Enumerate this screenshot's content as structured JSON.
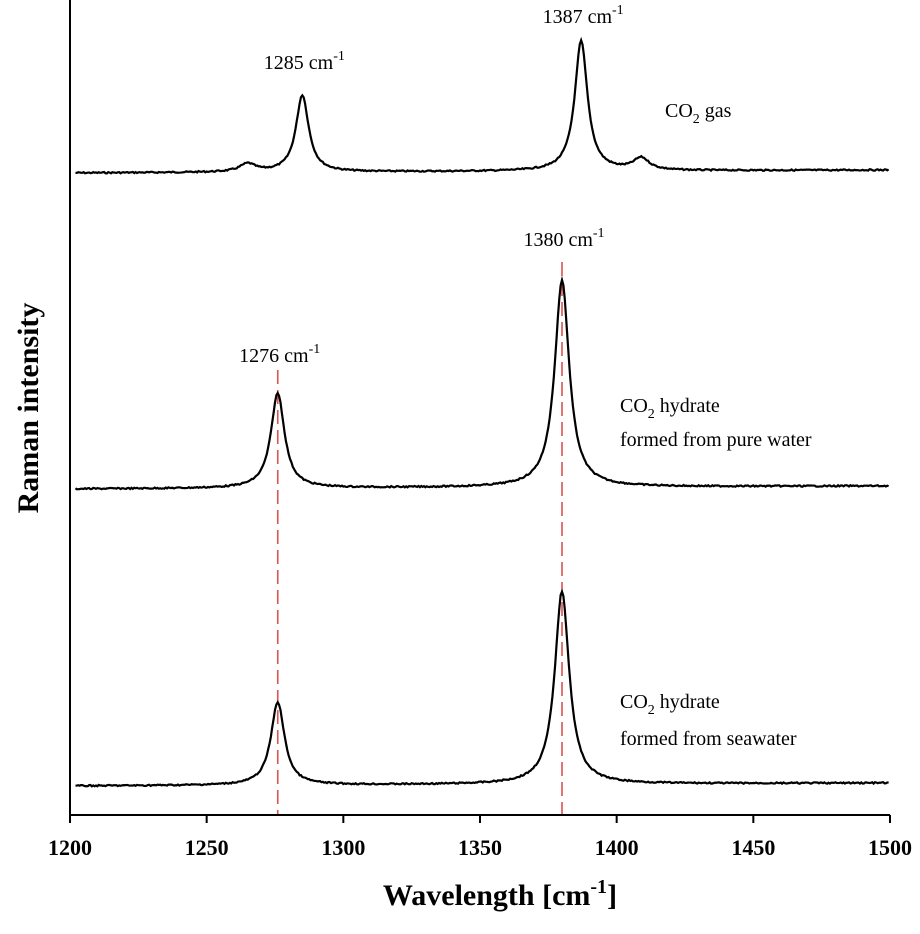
{
  "chart_data": {
    "type": "line",
    "xlabel_main": "Wavelength [cm",
    "xlabel_sup": "-1",
    "xlabel_end": "]",
    "ylabel": "Raman intensity",
    "xlim": [
      1200,
      1500
    ],
    "xticks": [
      1200,
      1250,
      1300,
      1350,
      1400,
      1450,
      1500
    ],
    "y_ticks_shown": false,
    "grid": false,
    "series": [
      {
        "name_main": "CO",
        "name_sub": "2",
        "name_rest": " gas",
        "peaks": [
          {
            "x": 1265,
            "height": 0.08,
            "width": 3.5
          },
          {
            "x": 1285,
            "height": 0.77,
            "width": 2.8
          },
          {
            "x": 1387,
            "height": 1.3,
            "width": 2.8
          },
          {
            "x": 1409,
            "height": 0.12,
            "width": 3.5
          }
        ],
        "baseline_level": 2
      },
      {
        "name_main": "CO",
        "name_sub": "2",
        "name_rest": " hydrate",
        "name_line2": "formed from pure water",
        "peaks": [
          {
            "x": 1276,
            "height": 0.95,
            "width": 3.0
          },
          {
            "x": 1380,
            "height": 2.07,
            "width": 3.2
          }
        ],
        "baseline_level": 1
      },
      {
        "name_main": "CO",
        "name_sub": "2",
        "name_rest": " hydrate",
        "name_line2": "formed from seawater",
        "peaks": [
          {
            "x": 1276,
            "height": 0.83,
            "width": 3.0
          },
          {
            "x": 1380,
            "height": 1.93,
            "width": 3.2
          }
        ],
        "baseline_level": 0
      }
    ],
    "annotations": [
      {
        "main": "1285 cm",
        "sup": "-1",
        "x": 1285,
        "series": 0
      },
      {
        "main": "1387 cm",
        "sup": "-1",
        "x": 1387,
        "series": 0
      },
      {
        "main": "1276 cm",
        "sup": "-1",
        "x": 1276,
        "series": 1
      },
      {
        "main": "1380 cm",
        "sup": "-1",
        "x": 1380,
        "series": 1
      }
    ],
    "reference_lines": [
      {
        "x": 1276,
        "color": "#d9534f",
        "style": "dashed"
      },
      {
        "x": 1380,
        "color": "#d9534f",
        "style": "dashed"
      }
    ],
    "colors": {
      "line": "#000000",
      "refline": "#d9534f"
    }
  }
}
